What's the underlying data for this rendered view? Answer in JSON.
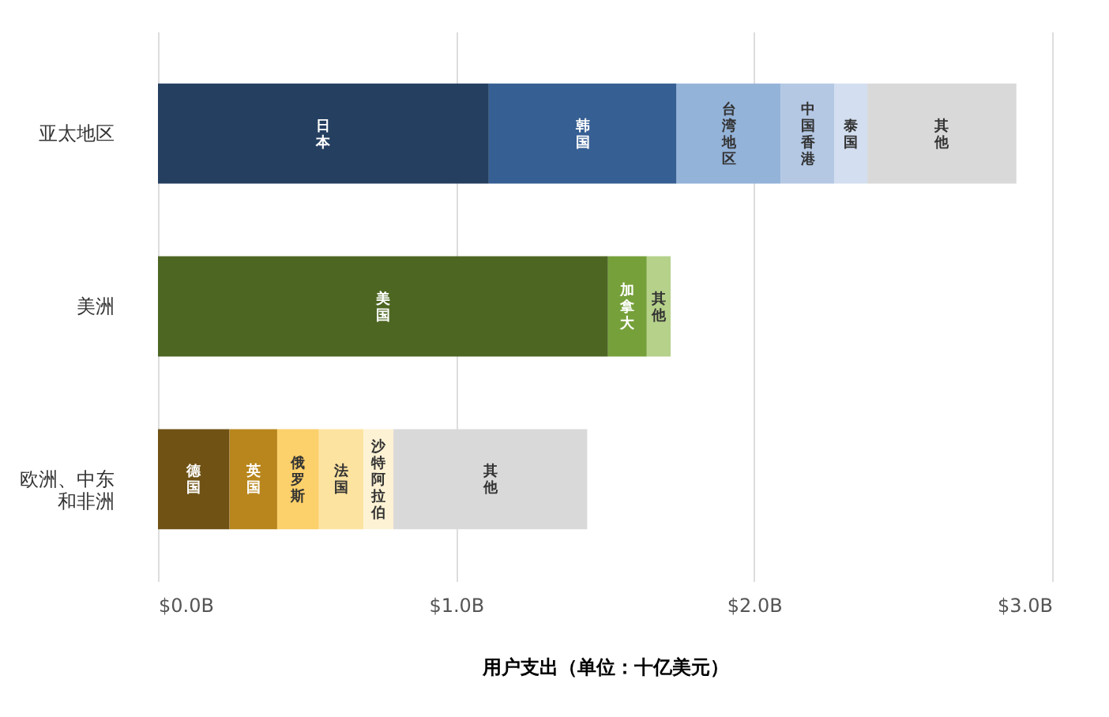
{
  "chart_data": {
    "type": "bar",
    "orientation": "horizontal",
    "stacked": true,
    "xlabel": "用户支出（单位：十亿美元）",
    "categories": [
      "亚太地区",
      "美洲",
      "欧洲、中东和非洲"
    ],
    "series": [
      {
        "name": "日本",
        "color": "#253f60",
        "values": [
          1.11,
          null,
          null
        ]
      },
      {
        "name": "韩国",
        "color": "#365f93",
        "values": [
          0.63,
          null,
          null
        ]
      },
      {
        "name": "台湾地区",
        "color": "#94b3d9",
        "values": [
          0.35,
          null,
          null
        ]
      },
      {
        "name": "中国香港",
        "color": "#b4c8e4",
        "values": [
          0.18,
          null,
          null
        ]
      },
      {
        "name": "泰国",
        "color": "#d3dff0",
        "values": [
          0.11,
          null,
          null
        ]
      },
      {
        "name": "其他",
        "color": "#d9d9d9",
        "values": [
          0.5,
          null,
          null
        ]
      },
      {
        "name": "美国",
        "color": "#4d6622",
        "values": [
          null,
          1.51,
          null
        ]
      },
      {
        "name": "加拿大",
        "color": "#76a03a",
        "values": [
          null,
          0.13,
          null
        ]
      },
      {
        "name": "其他",
        "color": "#b5d18a",
        "values": [
          null,
          0.08,
          null
        ]
      },
      {
        "name": "德国",
        "color": "#6f5214",
        "values": [
          null,
          null,
          0.24
        ]
      },
      {
        "name": "英国",
        "color": "#b8861c",
        "values": [
          null,
          null,
          0.16
        ]
      },
      {
        "name": "俄罗斯",
        "color": "#fcd06a",
        "values": [
          null,
          null,
          0.14
        ]
      },
      {
        "name": "法国",
        "color": "#fde3a0",
        "values": [
          null,
          null,
          0.15
        ]
      },
      {
        "name": "沙特阿拉伯",
        "color": "#fdf2d4",
        "values": [
          null,
          null,
          0.1
        ]
      },
      {
        "name": "其他",
        "color": "#d9d9d9",
        "values": [
          null,
          null,
          0.65
        ]
      }
    ],
    "xlim": [
      0,
      3
    ],
    "xticks": [
      {
        "value": 0,
        "label": "$0.0B"
      },
      {
        "value": 1,
        "label": "$1.0B"
      },
      {
        "value": 2,
        "label": "$2.0B"
      },
      {
        "value": 3,
        "label": "$3.0B"
      }
    ],
    "grid": true
  }
}
